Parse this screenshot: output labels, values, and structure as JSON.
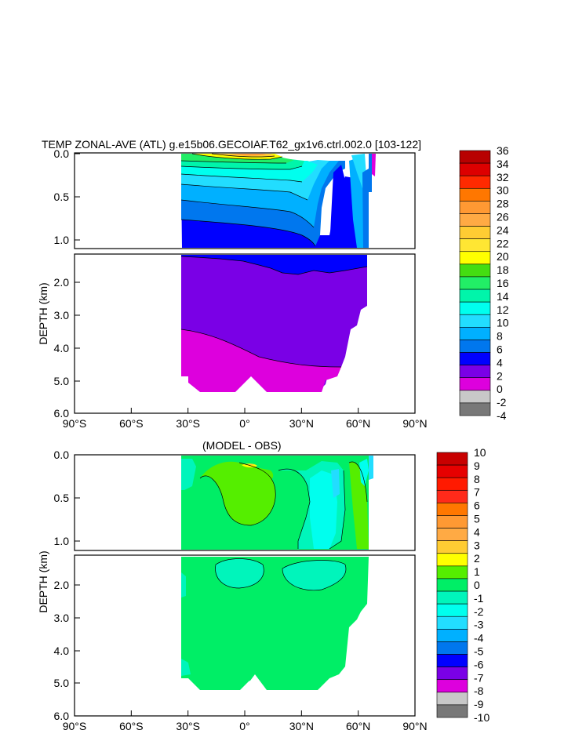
{
  "chart_data": [
    {
      "type": "heatmap",
      "title": "TEMP ZONAL-AVE (ATL) g.e15b06.GECOIAF.T62_gx1v6.ctrl.002.0 [103-122]",
      "ylabel": "DEPTH (km)",
      "x_ticks": [
        "90°S",
        "60°S",
        "30°S",
        "0°",
        "30°N",
        "60°N",
        "90°N"
      ],
      "y_ticks_upper": [
        "0.0",
        "0.5",
        "1.0"
      ],
      "y_ticks_lower": [
        "2.0",
        "3.0",
        "4.0",
        "5.0",
        "6.0"
      ],
      "xlim": [
        -90,
        90
      ],
      "ylim_upper": [
        0,
        1.1
      ],
      "ylim_lower": [
        1.1,
        6.0
      ],
      "colorbar_levels": [
        "36",
        "34",
        "32",
        "30",
        "28",
        "26",
        "24",
        "22",
        "20",
        "18",
        "16",
        "14",
        "12",
        "10",
        "8",
        "6",
        "4",
        "2",
        "0",
        "-2",
        "-4"
      ],
      "colorbar_colors": [
        "#b80000",
        "#dd0000",
        "#ff2a00",
        "#ff7700",
        "#ff9933",
        "#ffaa44",
        "#ffcc33",
        "#ffe633",
        "#ffff00",
        "#44dd11",
        "#22ee66",
        "#00f5aa",
        "#00ffee",
        "#22ddff",
        "#00b0ff",
        "#0077ee",
        "#0000ff",
        "#7a00e6",
        "#dd00dd",
        "#c8c8c8",
        "#787878"
      ]
    },
    {
      "type": "heatmap",
      "title": "(MODEL - OBS)",
      "ylabel": "DEPTH (km)",
      "x_ticks": [
        "90°S",
        "60°S",
        "30°S",
        "0°",
        "30°N",
        "60°N",
        "90°N"
      ],
      "y_ticks_upper": [
        "0.0",
        "0.5",
        "1.0"
      ],
      "y_ticks_lower": [
        "2.0",
        "3.0",
        "4.0",
        "5.0",
        "6.0"
      ],
      "xlim": [
        -90,
        90
      ],
      "ylim_upper": [
        0,
        1.1
      ],
      "ylim_lower": [
        1.1,
        6.0
      ],
      "colorbar_levels": [
        "10",
        "9",
        "8",
        "7",
        "6",
        "5",
        "4",
        "3",
        "2",
        "1",
        "0",
        "-1",
        "-2",
        "-3",
        "-4",
        "-5",
        "-6",
        "-7",
        "-8",
        "-9",
        "-10"
      ],
      "colorbar_colors": [
        "#c80000",
        "#e60000",
        "#ff1a00",
        "#ff2a1a",
        "#ff7700",
        "#ff9933",
        "#ffaa44",
        "#ffcc33",
        "#ffff00",
        "#55ee00",
        "#00ee66",
        "#00f5bb",
        "#00ffee",
        "#22ddff",
        "#00b0ff",
        "#0077ee",
        "#0000ff",
        "#7a00e6",
        "#dd00dd",
        "#c8c8c8",
        "#787878"
      ]
    }
  ]
}
